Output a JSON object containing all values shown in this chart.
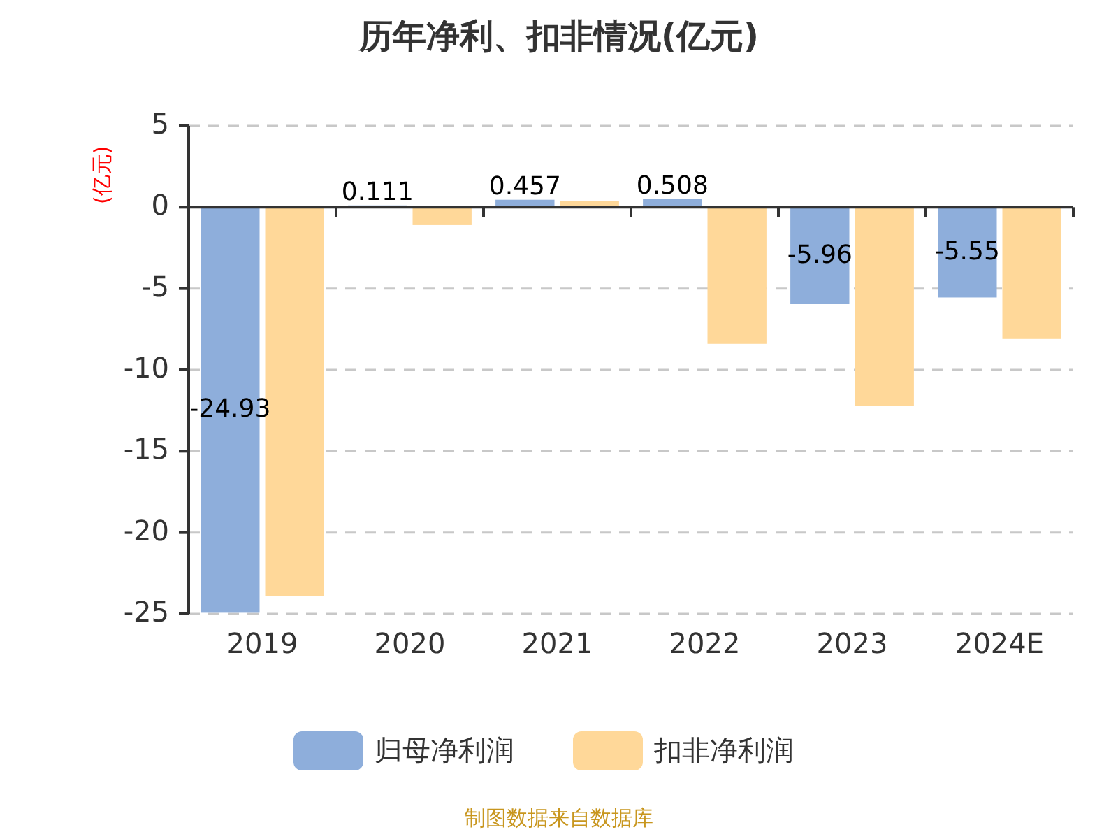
{
  "chart_data": {
    "type": "bar",
    "title": "历年净利、扣非情况(亿元)",
    "ylabel": "(亿元)",
    "categories": [
      "2019",
      "2020",
      "2021",
      "2022",
      "2023",
      "2024E"
    ],
    "series": [
      {
        "name": "归母净利润",
        "color": "#8eaedb",
        "values": [
          -24.93,
          0.111,
          0.457,
          0.508,
          -5.96,
          -5.55
        ],
        "value_labels": [
          "-24.93",
          "0.111",
          "0.457",
          "0.508",
          "-5.96",
          "-5.55"
        ]
      },
      {
        "name": "扣非净利润",
        "color": "#ffd899",
        "values": [
          -23.9,
          -1.1,
          0.4,
          -8.4,
          -12.2,
          -8.1
        ]
      }
    ],
    "ylim": [
      -25,
      5
    ],
    "yticks": [
      5,
      0,
      -5,
      -10,
      -15,
      -20,
      -25
    ],
    "grid": "y",
    "legend": "bottom",
    "annotations": [
      "制图数据来自数据库"
    ]
  }
}
